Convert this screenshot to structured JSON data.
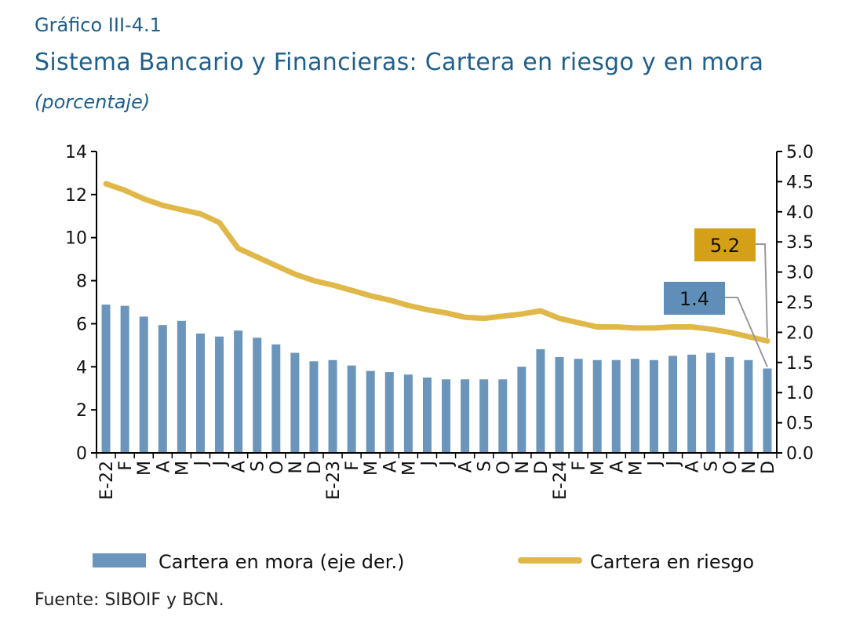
{
  "figure_label": "Gráfico III-4.1",
  "title": "Sistema Bancario y Financieras: Cartera en riesgo y en mora",
  "subtitle": "(porcentaje)",
  "source": "Fuente: SIBOIF y BCN.",
  "colors": {
    "bars": "#6b95ba",
    "line": "#e0b84a",
    "callout_line_box": "#d4a017",
    "callout_bar_box": "#5f8fb8",
    "title": "#1f5f8b"
  },
  "chart_data": {
    "type": "bar+line",
    "categories": [
      "E-22",
      "F",
      "M",
      "A",
      "M",
      "J",
      "J",
      "A",
      "S",
      "O",
      "N",
      "D",
      "E-23",
      "F",
      "M",
      "A",
      "M",
      "J",
      "J",
      "A",
      "S",
      "O",
      "N",
      "D",
      "E-24",
      "F",
      "M",
      "A",
      "M",
      "J",
      "J",
      "A",
      "S",
      "O",
      "N",
      "D"
    ],
    "left_axis": {
      "ylim": [
        0,
        14
      ],
      "ticks": [
        "0",
        "2",
        "4",
        "6",
        "8",
        "10",
        "12",
        "14"
      ]
    },
    "right_axis": {
      "ylim": [
        0,
        5
      ],
      "ticks": [
        "0.0",
        "0.5",
        "1.0",
        "1.5",
        "2.0",
        "2.5",
        "3.0",
        "3.5",
        "4.0",
        "4.5",
        "5.0"
      ]
    },
    "series": [
      {
        "name": "Cartera en mora (eje der.)",
        "type": "bar",
        "axis": "right",
        "values": [
          2.46,
          2.44,
          2.26,
          2.12,
          2.19,
          1.98,
          1.93,
          2.03,
          1.91,
          1.8,
          1.66,
          1.52,
          1.54,
          1.45,
          1.36,
          1.34,
          1.3,
          1.25,
          1.22,
          1.22,
          1.22,
          1.22,
          1.43,
          1.72,
          1.59,
          1.56,
          1.54,
          1.54,
          1.56,
          1.54,
          1.61,
          1.63,
          1.66,
          1.59,
          1.54,
          1.4
        ]
      },
      {
        "name": "Cartera en riesgo",
        "type": "line",
        "axis": "left",
        "values": [
          12.5,
          12.2,
          11.8,
          11.5,
          11.3,
          11.1,
          10.7,
          9.5,
          9.1,
          8.7,
          8.3,
          8.0,
          7.8,
          7.55,
          7.3,
          7.1,
          6.85,
          6.65,
          6.5,
          6.3,
          6.25,
          6.35,
          6.45,
          6.6,
          6.25,
          6.05,
          5.85,
          5.85,
          5.8,
          5.8,
          5.85,
          5.85,
          5.75,
          5.6,
          5.4,
          5.2
        ]
      }
    ],
    "callouts": {
      "line_last": "5.2",
      "bar_last": "1.4"
    },
    "legend": {
      "placement": "bottom"
    }
  }
}
